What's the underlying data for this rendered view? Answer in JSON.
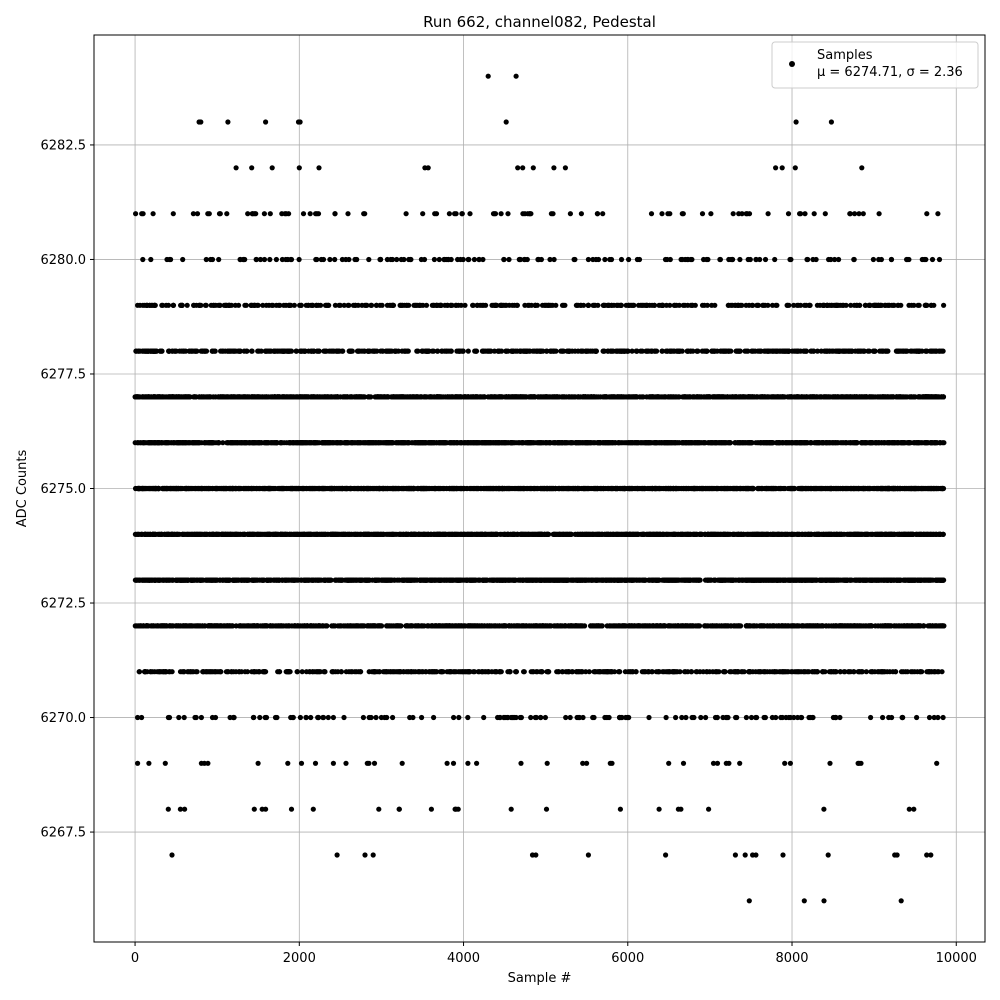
{
  "chart_data": {
    "type": "scatter",
    "title": "Run 662, channel082, Pedestal",
    "xlabel": "Sample #",
    "ylabel": "ADC Counts",
    "xlim": [
      -500,
      10350
    ],
    "ylim": [
      6265.1,
      6284.9
    ],
    "xticks": [
      0,
      2000,
      4000,
      6000,
      8000,
      10000
    ],
    "yticks": [
      6267.5,
      6270.0,
      6272.5,
      6275.0,
      6277.5,
      6280.0,
      6282.5
    ],
    "xtick_labels": [
      "0",
      "2000",
      "4000",
      "6000",
      "8000",
      "10000"
    ],
    "ytick_labels": [
      "6267.5",
      "6270.0",
      "6272.5",
      "6275.0",
      "6277.5",
      "6280.0",
      "6282.5"
    ],
    "grid": true,
    "marker_color": "#000000",
    "legend": {
      "position": "top-right",
      "series_name": "Samples",
      "stats_line": "μ = 6274.71, σ = 2.36"
    },
    "x_range": [
      0,
      9850
    ],
    "samples_per_level_approx": {
      "6266": 4,
      "6267": 20,
      "6268": 25,
      "6269": 40,
      "6270": 150,
      "6271": 500,
      "6272": 900,
      "6273": 1200,
      "6274": 1500,
      "6275": 1600,
      "6276": 1400,
      "6277": 1100,
      "6278": 600,
      "6279": 400,
      "6280": 150,
      "6281": 90,
      "6282": 15,
      "6283": 8,
      "6284": 3
    },
    "outliers": [
      {
        "x": 4300,
        "y": 6284
      },
      {
        "x": 4640,
        "y": 6284
      },
      {
        "x": 780,
        "y": 6283
      },
      {
        "x": 800,
        "y": 6283
      },
      {
        "x": 1130,
        "y": 6283
      },
      {
        "x": 1590,
        "y": 6283
      },
      {
        "x": 1990,
        "y": 6283
      },
      {
        "x": 2010,
        "y": 6283
      },
      {
        "x": 4520,
        "y": 6283
      },
      {
        "x": 8050,
        "y": 6283
      },
      {
        "x": 8480,
        "y": 6283
      },
      {
        "x": 1230,
        "y": 6282
      },
      {
        "x": 1420,
        "y": 6282
      },
      {
        "x": 1670,
        "y": 6282
      },
      {
        "x": 2000,
        "y": 6282
      },
      {
        "x": 2240,
        "y": 6282
      },
      {
        "x": 3530,
        "y": 6282
      },
      {
        "x": 3570,
        "y": 6282
      },
      {
        "x": 4660,
        "y": 6282
      },
      {
        "x": 4720,
        "y": 6282
      },
      {
        "x": 4850,
        "y": 6282
      },
      {
        "x": 5100,
        "y": 6282
      },
      {
        "x": 5240,
        "y": 6282
      },
      {
        "x": 7800,
        "y": 6282
      },
      {
        "x": 7880,
        "y": 6282
      },
      {
        "x": 8040,
        "y": 6282
      },
      {
        "x": 8850,
        "y": 6282
      },
      {
        "x": 7480,
        "y": 6266
      },
      {
        "x": 8150,
        "y": 6266
      },
      {
        "x": 8390,
        "y": 6266
      },
      {
        "x": 9330,
        "y": 6266
      },
      {
        "x": 450,
        "y": 6267
      },
      {
        "x": 2460,
        "y": 6267
      },
      {
        "x": 2800,
        "y": 6267
      },
      {
        "x": 2900,
        "y": 6267
      },
      {
        "x": 4840,
        "y": 6267
      },
      {
        "x": 4880,
        "y": 6267
      },
      {
        "x": 5520,
        "y": 6267
      },
      {
        "x": 6460,
        "y": 6267
      },
      {
        "x": 7310,
        "y": 6267
      },
      {
        "x": 7430,
        "y": 6267
      },
      {
        "x": 7520,
        "y": 6267
      },
      {
        "x": 7560,
        "y": 6267
      },
      {
        "x": 7890,
        "y": 6267
      },
      {
        "x": 8440,
        "y": 6267
      },
      {
        "x": 9250,
        "y": 6267
      },
      {
        "x": 9280,
        "y": 6267
      },
      {
        "x": 9640,
        "y": 6267
      },
      {
        "x": 9690,
        "y": 6267
      }
    ]
  }
}
